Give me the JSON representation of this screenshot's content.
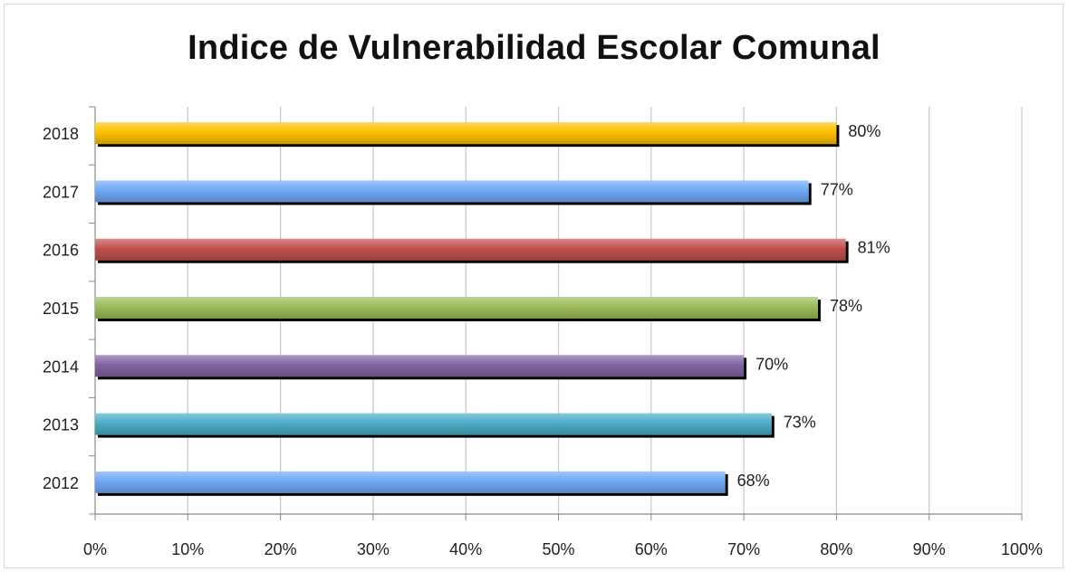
{
  "chart_data": {
    "type": "bar",
    "orientation": "horizontal",
    "title": "Indice de Vulnerabilidad Escolar Comunal",
    "xlabel": "",
    "ylabel": "",
    "categories": [
      "2018",
      "2017",
      "2016",
      "2015",
      "2014",
      "2013",
      "2012"
    ],
    "values": [
      80,
      77,
      81,
      78,
      70,
      73,
      68
    ],
    "data_labels": [
      "80%",
      "77%",
      "81%",
      "78%",
      "70%",
      "73%",
      "68%"
    ],
    "bar_colors": [
      "#ffc000",
      "#6fa8f5",
      "#c0504d",
      "#9bbb59",
      "#8064a2",
      "#4bacc6",
      "#6fa8f5"
    ],
    "xlim": [
      0,
      100
    ],
    "xticks": [
      0,
      10,
      20,
      30,
      40,
      50,
      60,
      70,
      80,
      90,
      100
    ],
    "xtick_labels": [
      "0%",
      "10%",
      "20%",
      "30%",
      "40%",
      "50%",
      "60%",
      "70%",
      "80%",
      "90%",
      "100%"
    ],
    "grid": "vertical",
    "legend": "none"
  }
}
